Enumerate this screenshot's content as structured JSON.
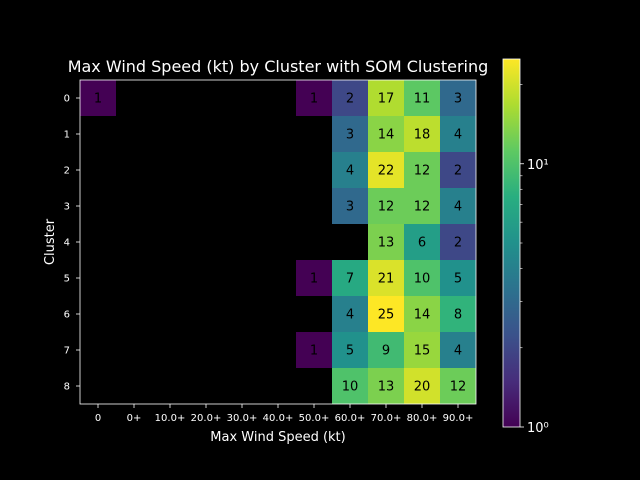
{
  "chart_data": {
    "type": "heatmap",
    "title": "Max Wind Speed (kt) by Cluster with SOM Clustering",
    "xlabel": "Max Wind Speed (kt)",
    "ylabel": "Cluster",
    "x_categories": [
      "0",
      "0+",
      "10.0+",
      "20.0+",
      "30.0+",
      "40.0+",
      "50.0+",
      "60.0+",
      "70.0+",
      "80.0+",
      "90.0+"
    ],
    "y_categories": [
      "0",
      "1",
      "2",
      "3",
      "4",
      "5",
      "6",
      "7",
      "8"
    ],
    "values": [
      [
        1,
        null,
        null,
        null,
        null,
        null,
        1,
        2,
        17,
        11,
        3
      ],
      [
        null,
        null,
        null,
        null,
        null,
        null,
        null,
        3,
        14,
        18,
        4
      ],
      [
        null,
        null,
        null,
        null,
        null,
        null,
        null,
        4,
        22,
        12,
        2
      ],
      [
        null,
        null,
        null,
        null,
        null,
        null,
        null,
        3,
        12,
        12,
        4
      ],
      [
        null,
        null,
        null,
        null,
        null,
        null,
        null,
        null,
        13,
        6,
        2
      ],
      [
        null,
        null,
        null,
        null,
        null,
        null,
        1,
        7,
        21,
        10,
        5
      ],
      [
        null,
        null,
        null,
        null,
        null,
        null,
        null,
        4,
        25,
        14,
        8
      ],
      [
        null,
        null,
        null,
        null,
        null,
        null,
        1,
        5,
        9,
        15,
        4
      ],
      [
        null,
        null,
        null,
        null,
        null,
        null,
        null,
        10,
        13,
        20,
        12
      ]
    ],
    "colorbar": {
      "scale": "log",
      "range": [
        1,
        25
      ],
      "colormap": "viridis",
      "tick_labels": [
        "10⁰",
        "10¹"
      ]
    },
    "background_color": "#000000"
  }
}
